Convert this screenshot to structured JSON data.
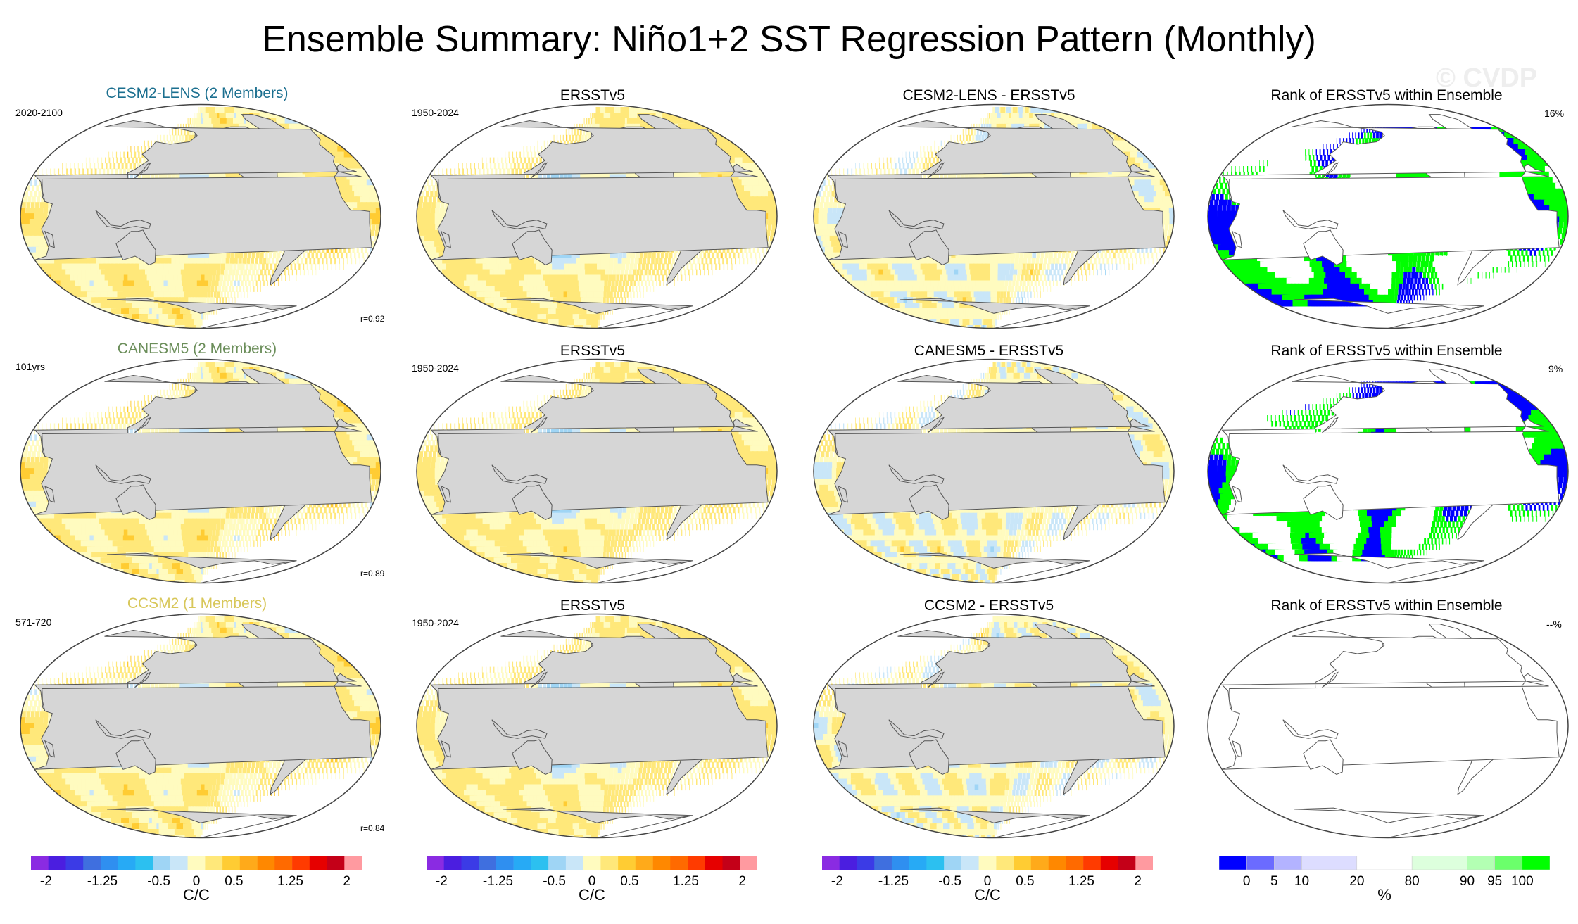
{
  "title": "Ensemble Summary: Niño1+2 SST Regression Pattern (Monthly)",
  "watermark": "© CVDP",
  "colors": {
    "model_title_cesm2": "#1b6f8f",
    "model_title_canesm5": "#6b8e5a",
    "model_title_ccsm2": "#d8c75a",
    "land": "#d6d6d6",
    "regression_scale": [
      "#8a2be2",
      "#4b1ee0",
      "#3b3be6",
      "#3f6fdf",
      "#2f8ff0",
      "#27aaf5",
      "#2cc0f0",
      "#9fd5f5",
      "#c9e6f8",
      "#fffbbf",
      "#ffe87a",
      "#ffcc33",
      "#ffaa1a",
      "#ff8800",
      "#ff6a00",
      "#ff3b00",
      "#e60000",
      "#c40018",
      "#ff9aa0"
    ],
    "rank_scale": [
      "#0000ff",
      "#6b6bff",
      "#b3b3ff",
      "#ddddff",
      "#ffffff",
      "#ddffdd",
      "#b3ffb3",
      "#6bff6b",
      "#00ff00"
    ]
  },
  "chart_data": [
    {
      "type": "heatmap",
      "panel": "r1c1",
      "title": "CESM2-LENS (2 Members)",
      "corner_label": "2020-2100",
      "pattern_correlation": "r=0.92",
      "map": "sst-regression",
      "variant": "model-strong"
    },
    {
      "type": "heatmap",
      "panel": "r1c2",
      "title": "ERSSTv5",
      "corner_label": "1950-2024",
      "map": "sst-regression",
      "variant": "obs"
    },
    {
      "type": "heatmap",
      "panel": "r1c3",
      "title": "CESM2-LENS - ERSSTv5",
      "map": "sst-regression",
      "variant": "diff-moderate"
    },
    {
      "type": "heatmap",
      "panel": "r1c4",
      "title": "Rank of ERSSTv5 within Ensemble",
      "corner_label": "16%",
      "map": "rank",
      "variant": "rank-a"
    },
    {
      "type": "heatmap",
      "panel": "r2c1",
      "title": "CANESM5 (2 Members)",
      "corner_label": "101yrs",
      "pattern_correlation": "r=0.89",
      "map": "sst-regression",
      "variant": "model-strong"
    },
    {
      "type": "heatmap",
      "panel": "r2c2",
      "title": "ERSSTv5",
      "corner_label": "1950-2024",
      "map": "sst-regression",
      "variant": "obs"
    },
    {
      "type": "heatmap",
      "panel": "r2c3",
      "title": "CANESM5 - ERSSTv5",
      "map": "sst-regression",
      "variant": "diff-weak"
    },
    {
      "type": "heatmap",
      "panel": "r2c4",
      "title": "Rank of ERSSTv5 within Ensemble",
      "corner_label": "9%",
      "map": "rank",
      "variant": "rank-b"
    },
    {
      "type": "heatmap",
      "panel": "r3c1",
      "title": "CCSM2 (1 Members)",
      "corner_label": "571-720",
      "pattern_correlation": "r=0.84",
      "map": "sst-regression",
      "variant": "model-strong"
    },
    {
      "type": "heatmap",
      "panel": "r3c2",
      "title": "ERSSTv5",
      "corner_label": "1950-2024",
      "map": "sst-regression",
      "variant": "obs"
    },
    {
      "type": "heatmap",
      "panel": "r3c3",
      "title": "CCSM2 - ERSSTv5",
      "map": "sst-regression",
      "variant": "diff-strong"
    },
    {
      "type": "heatmap",
      "panel": "r3c4",
      "title": "Rank of ERSSTv5 within Ensemble",
      "corner_label": "--%",
      "map": "rank",
      "variant": "empty"
    }
  ],
  "colorbars": [
    {
      "unit": "C/C",
      "tick_labels": [
        "-2",
        "-1.25",
        "-0.5",
        "0",
        "0.5",
        "1.25",
        "2"
      ],
      "range": [
        -2.2,
        2.2
      ]
    },
    {
      "unit": "C/C",
      "tick_labels": [
        "-2",
        "-1.25",
        "-0.5",
        "0",
        "0.5",
        "1.25",
        "2"
      ],
      "range": [
        -2.2,
        2.2
      ]
    },
    {
      "unit": "C/C",
      "tick_labels": [
        "-2",
        "-1.25",
        "-0.5",
        "0",
        "0.5",
        "1.25",
        "2"
      ],
      "range": [
        -2.2,
        2.2
      ]
    },
    {
      "unit": "%",
      "tick_labels": [
        "0",
        "5",
        "10",
        "20",
        "80",
        "90",
        "95",
        "100"
      ],
      "ticks": [
        0,
        5,
        10,
        20,
        80,
        90,
        95,
        100
      ]
    }
  ]
}
